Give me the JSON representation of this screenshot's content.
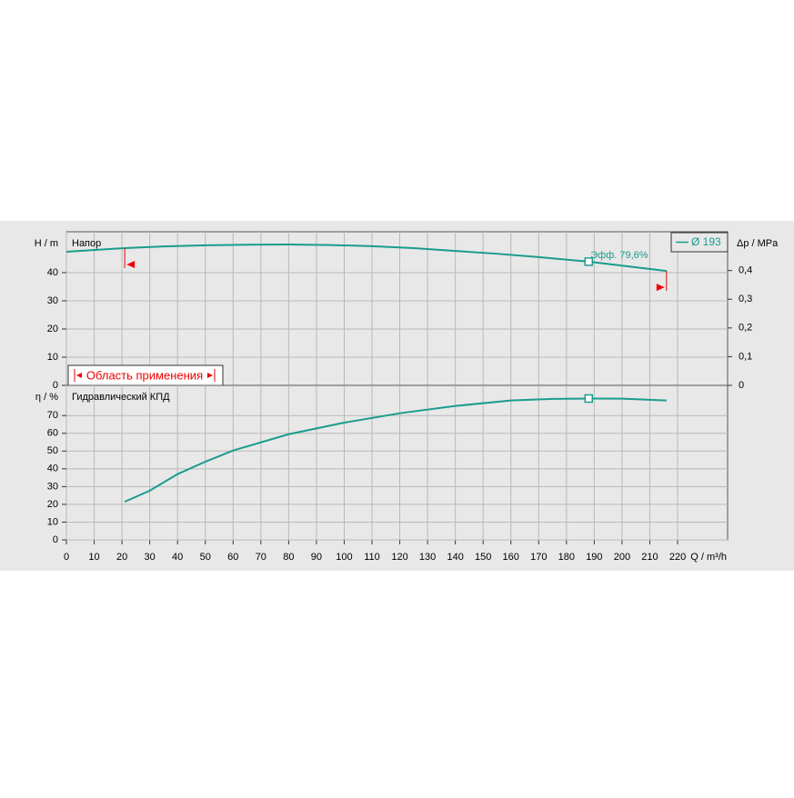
{
  "chart_data": [
    {
      "type": "line",
      "title": "Напор",
      "ylabel": "H / m",
      "y2label": "Δp / MPa",
      "x": [
        0,
        21,
        35,
        50,
        65,
        80,
        95,
        110,
        125,
        140,
        155,
        170,
        188,
        216
      ],
      "series": [
        {
          "name": "Ø 193",
          "color": "#1a9c8c",
          "values": [
            47.4,
            48.7,
            49.3,
            49.7,
            49.9,
            50.0,
            49.8,
            49.4,
            48.7,
            47.7,
            46.7,
            45.5,
            43.9,
            40.6
          ]
        }
      ],
      "xlim": [
        0,
        238
      ],
      "xticks": [
        0,
        10,
        20,
        30,
        40,
        50,
        60,
        70,
        80,
        90,
        100,
        110,
        120,
        130,
        140,
        150,
        160,
        170,
        180,
        190,
        200,
        210,
        220
      ],
      "ylim": [
        0,
        54.5
      ],
      "yticks": [
        0,
        10,
        20,
        30,
        40
      ],
      "y2lim": [
        0,
        0.535
      ],
      "y2ticks": [
        0,
        {
          "value": 0.1,
          "label": "0,1"
        },
        {
          "value": 0.2,
          "label": "0,2"
        },
        {
          "value": 0.3,
          "label": "0,3"
        },
        {
          "value": 0.4,
          "label": "0,4"
        }
      ],
      "annotation": "Эфф. 79,6%",
      "operating_point_index": 12,
      "range_label": "Область применения",
      "range": [
        21,
        216
      ],
      "grid": true
    },
    {
      "type": "line",
      "title": "Гидравлический КПД",
      "ylabel": "η / %",
      "xlabel": "Q / m³/h",
      "x": [
        0,
        21,
        30,
        40,
        50,
        60,
        80,
        100,
        120,
        140,
        160,
        175,
        188,
        200,
        216
      ],
      "series": [
        {
          "name": "Ø 193",
          "color": "#1a9c8c",
          "values": [
            null,
            21.5,
            27.7,
            37,
            44,
            50.3,
            59.5,
            66,
            71.3,
            75.4,
            78.5,
            79.4,
            79.6,
            79.5,
            78.5
          ]
        }
      ],
      "xlim": [
        0,
        238
      ],
      "xticks": [
        0,
        10,
        20,
        30,
        40,
        50,
        60,
        70,
        80,
        90,
        100,
        110,
        120,
        130,
        140,
        150,
        160,
        170,
        180,
        190,
        200,
        210,
        220
      ],
      "ylim": [
        0,
        87
      ],
      "yticks": [
        0,
        10,
        20,
        30,
        40,
        50,
        60,
        70
      ],
      "operating_point_index": 12,
      "grid": true
    }
  ]
}
